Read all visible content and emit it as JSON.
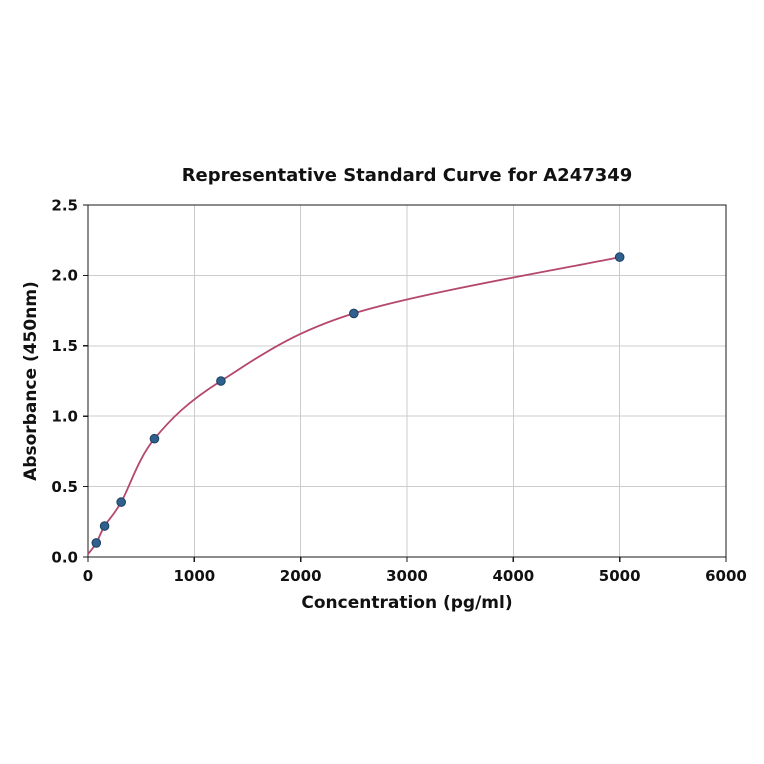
{
  "chart_data": {
    "type": "scatter",
    "title": "Representative Standard Curve for A247349",
    "xlabel": "Concentration (pg/ml)",
    "ylabel": "Absorbance (450nm)",
    "xlim": [
      0,
      6000
    ],
    "ylim": [
      0.0,
      2.5
    ],
    "xticks": [
      0,
      1000,
      2000,
      3000,
      4000,
      5000,
      6000
    ],
    "yticks": [
      0.0,
      0.5,
      1.0,
      1.5,
      2.0,
      2.5
    ],
    "grid": true,
    "legend": "none",
    "points": {
      "name": "standards",
      "x": [
        78,
        156,
        312,
        625,
        1250,
        2500,
        5000
      ],
      "y": [
        0.1,
        0.22,
        0.39,
        0.84,
        1.25,
        1.73,
        2.13
      ]
    },
    "fit_curve": {
      "name": "standard-curve-fit",
      "start": {
        "x": 0,
        "y": 0.02
      },
      "end": {
        "x": 5000,
        "y": 2.13
      }
    },
    "colors": {
      "curve": "#b5476f",
      "points": "#30608d",
      "point_edge": "#1c3f60",
      "grid": "#cccccc",
      "frame": "#1a1a1a",
      "text": "#111111",
      "background": "#ffffff"
    }
  }
}
